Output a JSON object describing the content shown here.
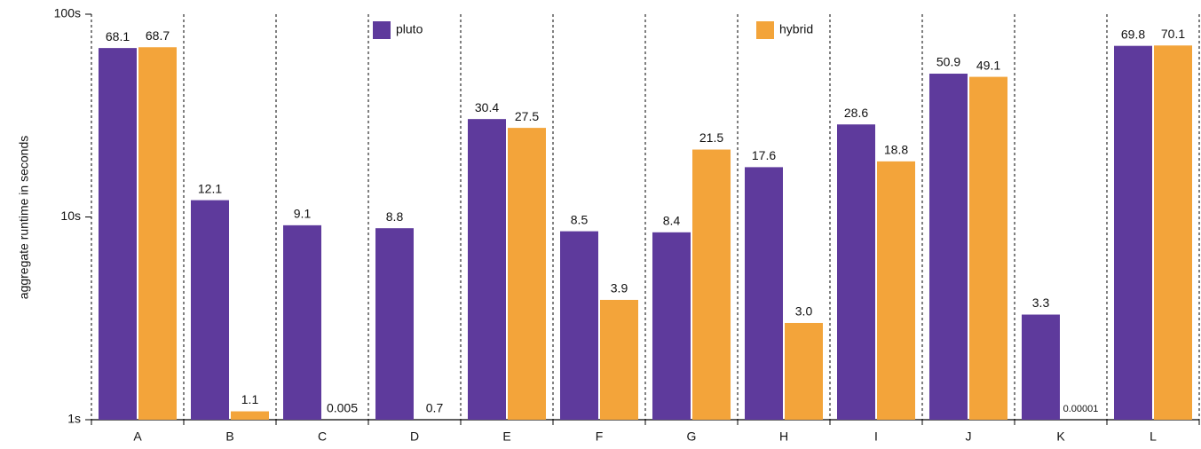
{
  "chart_data": {
    "type": "bar",
    "y_label": "aggregate runtime in seconds",
    "categories": [
      "A",
      "B",
      "C",
      "D",
      "E",
      "F",
      "G",
      "H",
      "I",
      "J",
      "K",
      "L"
    ],
    "series": [
      {
        "name": "pluto",
        "color": "#5e3a9c",
        "values": [
          68.1,
          12.1,
          9.1,
          8.8,
          30.4,
          8.5,
          8.4,
          17.6,
          28.6,
          50.9,
          3.3,
          69.8
        ]
      },
      {
        "name": "hybrid",
        "color": "#f3a43a",
        "values": [
          68.7,
          1.1,
          0.005,
          0.7,
          27.5,
          3.9,
          21.5,
          3,
          18.8,
          49.1,
          1e-05,
          70.1
        ],
        "value_labels": [
          "68.7",
          "1.1",
          "0.005",
          "0.7",
          "27.5",
          "3.9",
          "21.5",
          "3.0",
          "18.8",
          "49.1",
          "0.00001",
          "70.1"
        ]
      }
    ],
    "log_scale": true,
    "ylim": [
      1,
      100
    ],
    "yticks": [
      {
        "value": 1,
        "label": "1s"
      },
      {
        "value": 10,
        "label": "10s"
      },
      {
        "value": 100,
        "label": "100s"
      }
    ]
  }
}
